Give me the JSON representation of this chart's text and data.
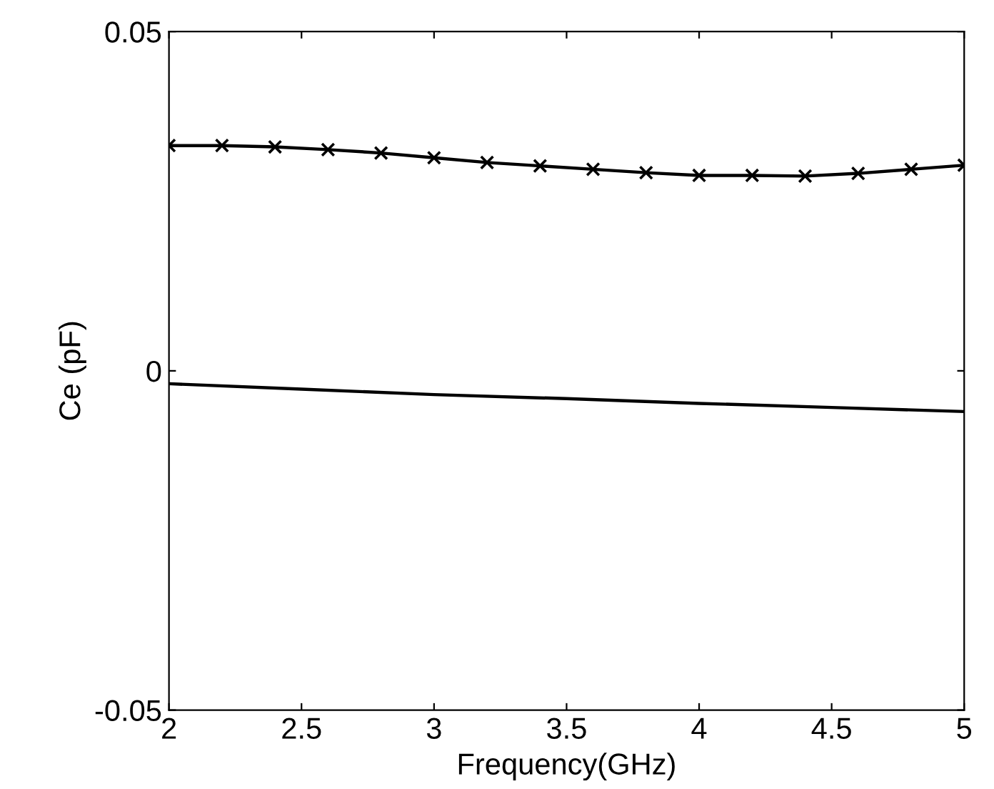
{
  "chart_data": {
    "type": "line",
    "xlabel": "Frequency(GHz)",
    "ylabel": "Ce (pF)",
    "xlim": [
      2,
      5
    ],
    "ylim": [
      -0.05,
      0.05
    ],
    "xticks": [
      2,
      2.5,
      3,
      3.5,
      4,
      4.5,
      5
    ],
    "yticks": [
      -0.05,
      0,
      0.05
    ],
    "grid": false,
    "series": [
      {
        "color": "#000000",
        "marker": "cross",
        "x": [
          2,
          2.2,
          2.4,
          2.6,
          2.8,
          3,
          3.2,
          3.4,
          3.6,
          3.8,
          4,
          4.2,
          4.4,
          4.6,
          4.8,
          5
        ],
        "values": [
          0.0332,
          0.0332,
          0.033,
          0.0326,
          0.0321,
          0.0314,
          0.0307,
          0.0302,
          0.0297,
          0.0292,
          0.0288,
          0.0288,
          0.0287,
          0.0291,
          0.0297,
          0.0303
        ]
      },
      {
        "color": "#000000",
        "marker": "none",
        "x": [
          2,
          2.5,
          3,
          3.5,
          4,
          4.5,
          5
        ],
        "values": [
          -0.0019,
          -0.0027,
          -0.0035,
          -0.0041,
          -0.0048,
          -0.0054,
          -0.006
        ]
      }
    ]
  }
}
